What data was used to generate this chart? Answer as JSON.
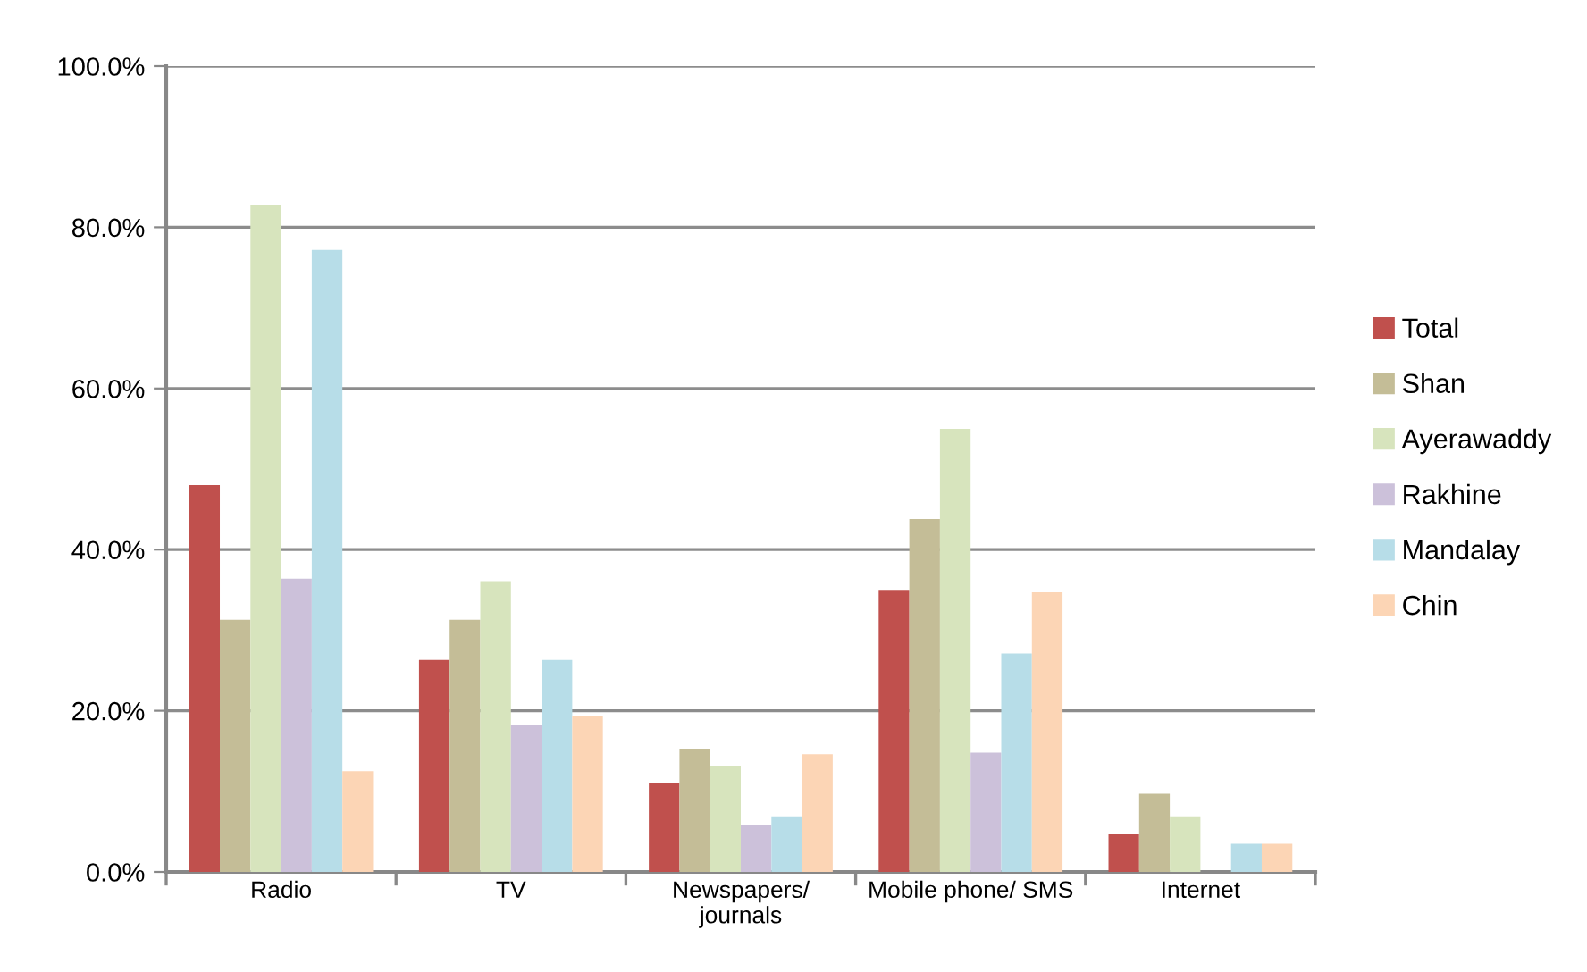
{
  "chart_data": {
    "type": "bar",
    "categories": [
      "Radio",
      "TV",
      "Newspapers/\njournals",
      "Mobile phone/ SMS",
      "Internet"
    ],
    "series": [
      {
        "name": "Total",
        "color": "#c0504d",
        "values": [
          48.0,
          26.3,
          11.1,
          35.0,
          4.7
        ]
      },
      {
        "name": "Shan",
        "color": "#c4bd97",
        "values": [
          31.3,
          31.3,
          15.3,
          43.8,
          9.7
        ]
      },
      {
        "name": "Ayerawaddy",
        "color": "#d7e4bd",
        "values": [
          82.7,
          36.1,
          13.2,
          55.0,
          6.9
        ]
      },
      {
        "name": "Rakhine",
        "color": "#ccc1da",
        "values": [
          36.4,
          18.3,
          5.8,
          14.8,
          0
        ]
      },
      {
        "name": "Mandalay",
        "color": "#b7dde8",
        "values": [
          77.2,
          26.3,
          6.9,
          27.1,
          3.5
        ]
      },
      {
        "name": "Chin",
        "color": "#fcd5b5",
        "values": [
          12.5,
          19.4,
          14.6,
          34.7,
          3.5
        ]
      }
    ],
    "ylim": [
      0,
      100
    ],
    "yticks": [
      {
        "value": 0,
        "label": "0.0%"
      },
      {
        "value": 20,
        "label": "20.0%"
      },
      {
        "value": 40,
        "label": "40.0%"
      },
      {
        "value": 60,
        "label": "60.0%"
      },
      {
        "value": 80,
        "label": "80.0%"
      },
      {
        "value": 100,
        "label": "100.0%"
      }
    ],
    "grid": "y",
    "legend": "right"
  }
}
